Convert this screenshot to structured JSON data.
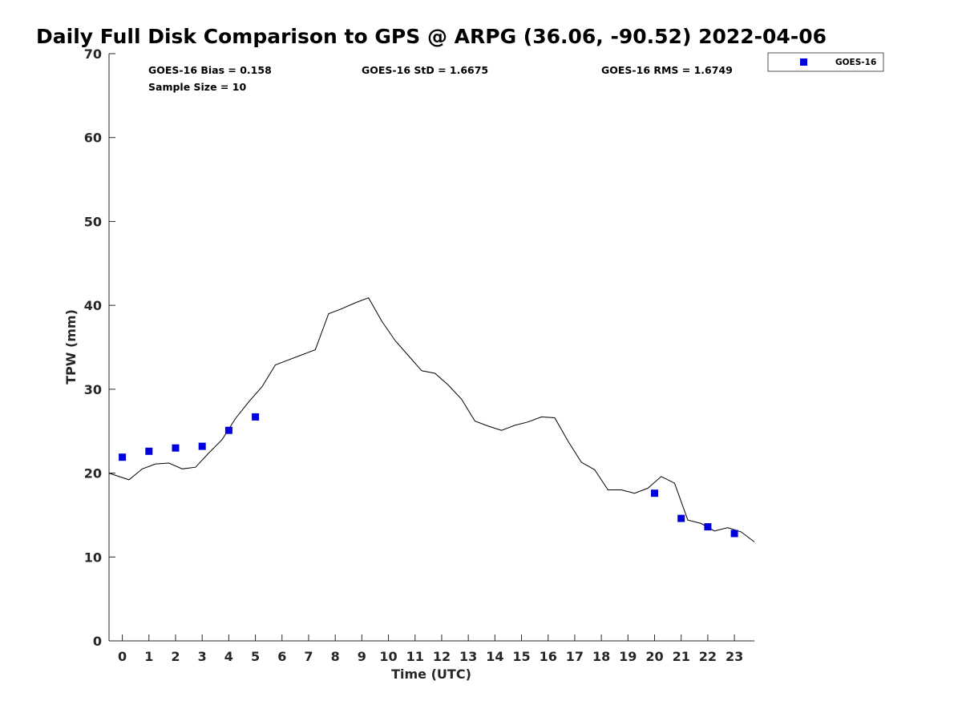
{
  "chart_data": {
    "type": "scatter",
    "title": "Daily Full Disk Comparison to GPS @ ARPG (36.06, -90.52) 2022-04-06",
    "xlabel": "Time (UTC)",
    "ylabel": "TPW (mm)",
    "xlim": [
      -0.5,
      23.75
    ],
    "ylim": [
      0,
      70
    ],
    "x_ticks": [
      0,
      1,
      2,
      3,
      4,
      5,
      6,
      7,
      8,
      9,
      10,
      11,
      12,
      13,
      14,
      15,
      16,
      17,
      18,
      19,
      20,
      21,
      22,
      23
    ],
    "y_ticks": [
      0,
      10,
      20,
      30,
      40,
      50,
      60,
      70
    ],
    "grid": false,
    "legend_position": "top-right",
    "stats": {
      "bias": "GOES-16 Bias = 0.158",
      "sample_size": "Sample Size = 10",
      "std": "GOES-16 StD = 1.6675",
      "rms": "GOES-16 RMS = 1.6749"
    },
    "gps_series": {
      "color": "#000000",
      "x": [
        -0.5,
        0.25,
        0.75,
        1.25,
        1.75,
        2.25,
        2.75,
        3.25,
        3.75,
        4.25,
        4.75,
        5.25,
        5.75,
        6.25,
        6.75,
        7.25,
        7.75,
        8.25,
        8.75,
        9.25,
        9.75,
        10.25,
        10.75,
        11.25,
        11.75,
        12.25,
        12.75,
        13.25,
        13.75,
        14.25,
        14.75,
        15.25,
        15.75,
        16.25,
        16.75,
        17.25,
        17.75,
        18.25,
        18.75,
        19.25,
        19.75,
        20.25,
        20.75,
        21.25,
        21.75,
        22.25,
        22.75,
        23.25,
        23.75
      ],
      "y": [
        20.0,
        19.2,
        20.5,
        21.1,
        21.2,
        20.5,
        20.7,
        22.4,
        24.0,
        26.5,
        28.5,
        30.3,
        32.9,
        33.5,
        34.1,
        34.7,
        39.0,
        39.6,
        40.3,
        40.9,
        38.1,
        35.8,
        34.0,
        32.2,
        31.9,
        30.5,
        28.8,
        26.2,
        25.6,
        25.1,
        25.7,
        26.1,
        26.7,
        26.6,
        23.8,
        21.3,
        20.4,
        18.0,
        18.0,
        17.6,
        18.2,
        19.6,
        18.8,
        14.4,
        14.0,
        13.1,
        13.5,
        13.0,
        11.8
      ]
    },
    "series": [
      {
        "name": "GOES-16",
        "color": "#0000dd",
        "x": [
          0,
          1,
          2,
          3,
          4,
          5,
          20,
          21,
          22,
          23
        ],
        "y": [
          21.9,
          22.6,
          23.0,
          23.2,
          25.1,
          26.7,
          17.6,
          14.6,
          13.6,
          12.8
        ]
      }
    ]
  }
}
